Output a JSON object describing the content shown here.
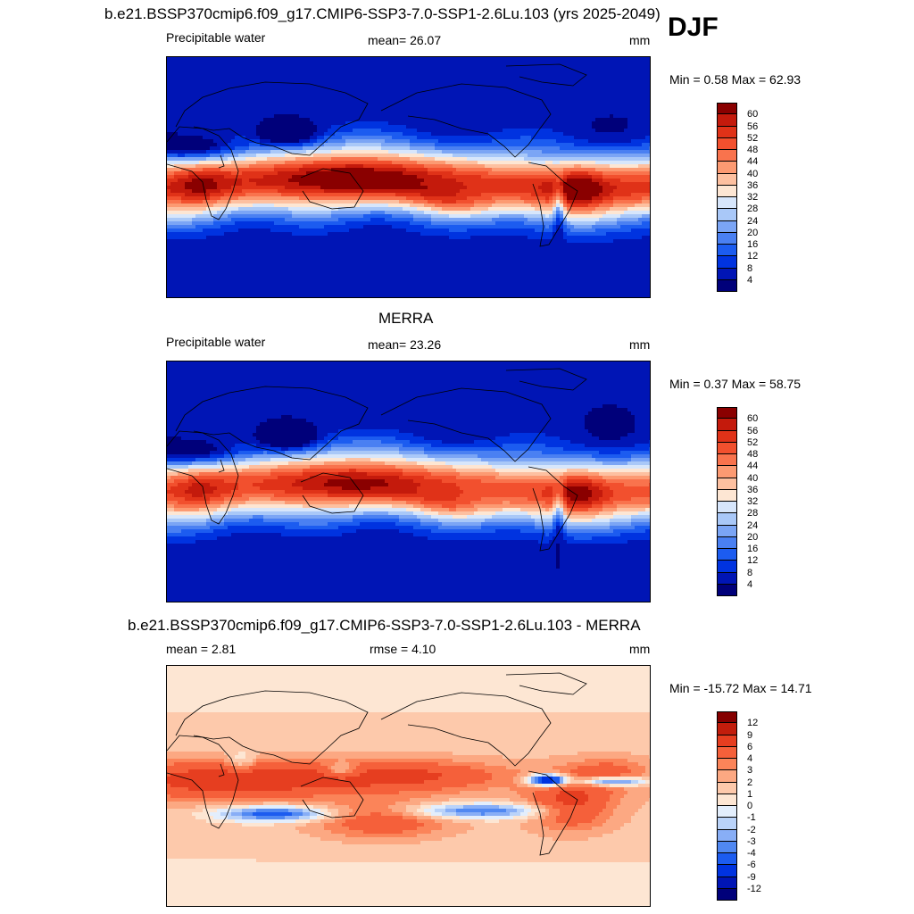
{
  "season": "DJF",
  "colors": {
    "pw": [
      "#00007a",
      "#0015b5",
      "#0033e0",
      "#1c5cf0",
      "#4a80f2",
      "#7ba5f5",
      "#a9c8f8",
      "#d7e6fb",
      "#fde6d3",
      "#fdc0a0",
      "#fc9a72",
      "#f9734d",
      "#f2502e",
      "#e03218",
      "#c41a0c",
      "#8a0000"
    ],
    "diff": [
      "#00007a",
      "#0015b5",
      "#0033e0",
      "#1c5cf0",
      "#5088f2",
      "#88aef6",
      "#bad3f9",
      "#e3eefc",
      "#fde6d3",
      "#fdc9ab",
      "#fca882",
      "#fb8459",
      "#f5603a",
      "#e63e20",
      "#c21d0c",
      "#850000"
    ]
  },
  "panels": [
    {
      "id": "model",
      "title": "b.e21.BSSP370cmip6.f09_g17.CMIP6-SSP3-7.0-SSP1-2.6Lu.103 (yrs 2025-2049)",
      "variable": "Precipitable water",
      "stat": "mean=  26.07",
      "units": "mm",
      "minmax": "Min =   0.58 Max =  62.93",
      "colorbar_labels": [
        "60",
        "56",
        "52",
        "48",
        "44",
        "40",
        "36",
        "32",
        "28",
        "24",
        "20",
        "16",
        "12",
        "8",
        "4"
      ]
    },
    {
      "id": "obs",
      "title": "MERRA",
      "variable": "Precipitable water",
      "stat": "mean=  23.26",
      "units": "mm",
      "minmax": "Min =   0.37 Max =  58.75",
      "colorbar_labels": [
        "60",
        "56",
        "52",
        "48",
        "44",
        "40",
        "36",
        "32",
        "28",
        "24",
        "20",
        "16",
        "12",
        "8",
        "4"
      ]
    },
    {
      "id": "diff",
      "title": "b.e21.BSSP370cmip6.f09_g17.CMIP6-SSP3-7.0-SSP1-2.6Lu.103 - MERRA",
      "variable": "mean =   2.81",
      "stat": "rmse =   4.10",
      "units": "mm",
      "minmax": "Min = -15.72 Max =  14.71",
      "colorbar_labels": [
        "12",
        "9",
        "6",
        "4",
        "3",
        "2",
        "1",
        "0",
        "-1",
        "-2",
        "-3",
        "-4",
        "-6",
        "-9",
        "-12"
      ]
    }
  ],
  "chart_data": [
    {
      "type": "heatmap",
      "title": "b.e21.BSSP370cmip6.f09_g17.CMIP6-SSP3-7.0-SSP1-2.6Lu.103 (yrs 2025-2049)",
      "season": "DJF",
      "variable": "Precipitable water",
      "units": "mm",
      "mean": 26.07,
      "min": 0.58,
      "max": 62.93,
      "contour_levels": [
        4,
        8,
        12,
        16,
        20,
        24,
        28,
        32,
        36,
        40,
        44,
        48,
        52,
        56,
        60
      ]
    },
    {
      "type": "heatmap",
      "title": "MERRA",
      "season": "DJF",
      "variable": "Precipitable water",
      "units": "mm",
      "mean": 23.26,
      "min": 0.37,
      "max": 58.75,
      "contour_levels": [
        4,
        8,
        12,
        16,
        20,
        24,
        28,
        32,
        36,
        40,
        44,
        48,
        52,
        56,
        60
      ]
    },
    {
      "type": "heatmap",
      "title": "b.e21.BSSP370cmip6.f09_g17.CMIP6-SSP3-7.0-SSP1-2.6Lu.103 - MERRA",
      "season": "DJF",
      "units": "mm",
      "mean": 2.81,
      "rmse": 4.1,
      "min": -15.72,
      "max": 14.71,
      "contour_levels": [
        -12,
        -9,
        -6,
        -4,
        -3,
        -2,
        -1,
        0,
        1,
        2,
        3,
        4,
        6,
        9,
        12
      ]
    }
  ]
}
